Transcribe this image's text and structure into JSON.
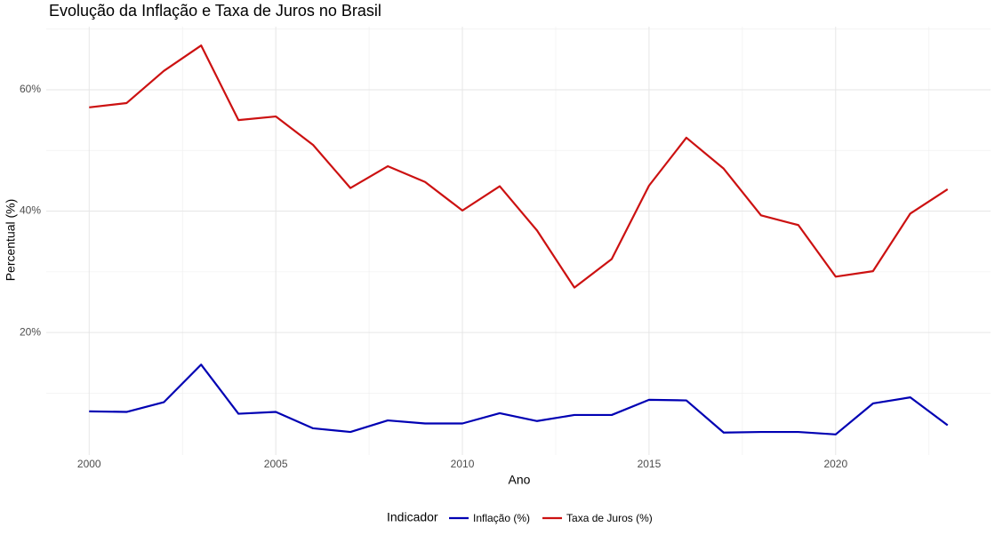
{
  "chart_data": {
    "type": "line",
    "title": "Evolução da Inflação e Taxa de Juros no Brasil",
    "x_label": "Ano",
    "y_label": "Percentual (%)",
    "legend_title": "Indicador",
    "x": [
      2000,
      2001,
      2002,
      2003,
      2004,
      2005,
      2006,
      2007,
      2008,
      2009,
      2010,
      2011,
      2012,
      2013,
      2014,
      2015,
      2016,
      2017,
      2018,
      2019,
      2020,
      2021,
      2022,
      2023
    ],
    "series": [
      {
        "name": "Inflação (%)",
        "color": "#0000b3",
        "values": [
          7.0,
          6.9,
          8.5,
          14.7,
          6.6,
          6.9,
          4.2,
          3.6,
          5.5,
          5.0,
          5.0,
          6.7,
          5.4,
          6.4,
          6.4,
          8.9,
          8.8,
          3.5,
          3.6,
          3.6,
          3.2,
          8.3,
          9.3,
          4.7
        ]
      },
      {
        "name": "Taxa de Juros (%)",
        "color": "#cc1111",
        "values": [
          57.1,
          57.8,
          63.1,
          67.3,
          55.0,
          55.6,
          50.9,
          43.8,
          47.4,
          44.8,
          40.1,
          44.1,
          36.8,
          27.4,
          32.1,
          44.2,
          52.1,
          47.0,
          39.3,
          37.7,
          29.2,
          30.1,
          39.6,
          43.6
        ]
      }
    ],
    "xlim": [
      1998.85,
      2024.15
    ],
    "xticks": [
      2000,
      2005,
      2010,
      2015,
      2020
    ],
    "ylim": [
      -0.2,
      70.4
    ],
    "yticks": [
      {
        "value": 20,
        "label": "20%"
      },
      {
        "value": 40,
        "label": "40%"
      },
      {
        "value": 60,
        "label": "60%"
      }
    ],
    "grid": true,
    "legend_position": "bottom"
  }
}
